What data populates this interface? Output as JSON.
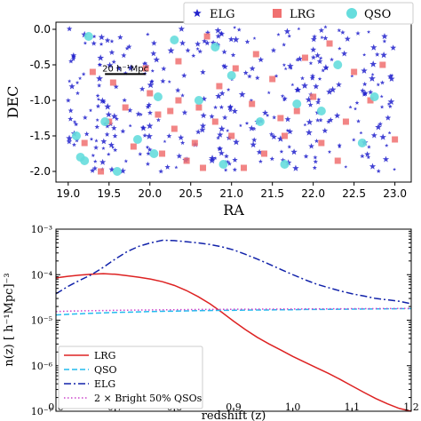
{
  "chart_data": [
    {
      "type": "scatter",
      "title": "",
      "xlabel": "RA",
      "ylabel": "DEC",
      "xlim": [
        18.85,
        23.2
      ],
      "ylim": [
        -2.15,
        0.1
      ],
      "xticks": [
        "19.0",
        "19.5",
        "20.0",
        "20.5",
        "21.0",
        "21.5",
        "22.0",
        "22.5",
        "23.0"
      ],
      "xtick_values": [
        19.0,
        19.5,
        20.0,
        20.5,
        21.0,
        21.5,
        22.0,
        22.5,
        23.0
      ],
      "yticks": [
        "0.0",
        "-0.5",
        "-1.0",
        "-1.5",
        "-2.0"
      ],
      "ytick_values": [
        0.0,
        -0.5,
        -1.0,
        -1.5,
        -2.0
      ],
      "legend_position": "top",
      "scale_bar": {
        "label": "20 h⁻¹Mpc",
        "ra_start": 19.45,
        "ra_end": 19.95,
        "dec": -0.63
      },
      "series": [
        {
          "name": "ELG",
          "marker": "star",
          "color": "#2222cc",
          "points": "sampled-dense"
        },
        {
          "name": "LRG",
          "marker": "square",
          "color": "#f07070",
          "points": [
            [
              19.2,
              -1.6
            ],
            [
              19.3,
              -0.6
            ],
            [
              19.55,
              -0.75
            ],
            [
              19.5,
              -1.3
            ],
            [
              19.4,
              -2.0
            ],
            [
              19.7,
              -1.1
            ],
            [
              19.8,
              -1.65
            ],
            [
              20.0,
              -0.9
            ],
            [
              20.1,
              -1.2
            ],
            [
              20.15,
              -1.75
            ],
            [
              20.3,
              -1.4
            ],
            [
              20.35,
              -0.45
            ],
            [
              20.35,
              -1.0
            ],
            [
              20.45,
              -1.85
            ],
            [
              20.6,
              -1.1
            ],
            [
              20.55,
              -1.6
            ],
            [
              20.7,
              -0.1
            ],
            [
              20.8,
              -1.3
            ],
            [
              20.85,
              -0.8
            ],
            [
              20.65,
              -1.95
            ],
            [
              21.0,
              -1.5
            ],
            [
              21.05,
              -0.55
            ],
            [
              21.15,
              -1.95
            ],
            [
              21.25,
              -1.05
            ],
            [
              21.4,
              -1.75
            ],
            [
              21.5,
              -0.7
            ],
            [
              21.6,
              -1.25
            ],
            [
              21.65,
              -1.5
            ],
            [
              21.8,
              -1.15
            ],
            [
              21.9,
              -0.4
            ],
            [
              22.0,
              -0.95
            ],
            [
              22.1,
              -1.6
            ],
            [
              22.2,
              -0.2
            ],
            [
              22.3,
              -1.85
            ],
            [
              22.4,
              -1.3
            ],
            [
              22.5,
              -0.6
            ],
            [
              22.7,
              -1.0
            ],
            [
              22.85,
              -0.5
            ],
            [
              23.0,
              -1.55
            ],
            [
              20.25,
              -1.15
            ],
            [
              19.95,
              -0.55
            ],
            [
              21.3,
              -0.35
            ]
          ]
        },
        {
          "name": "QSO",
          "marker": "circle",
          "color": "#66dddd",
          "points": [
            [
              19.15,
              -1.8
            ],
            [
              19.2,
              -1.85
            ],
            [
              19.25,
              -0.1
            ],
            [
              19.1,
              -1.5
            ],
            [
              19.45,
              -1.3
            ],
            [
              19.6,
              -2.0
            ],
            [
              19.85,
              -1.55
            ],
            [
              20.05,
              -1.75
            ],
            [
              20.1,
              -0.95
            ],
            [
              20.6,
              -1.0
            ],
            [
              20.8,
              -0.25
            ],
            [
              20.9,
              -1.9
            ],
            [
              21.35,
              -1.3
            ],
            [
              21.0,
              -0.65
            ],
            [
              21.65,
              -1.9
            ],
            [
              22.1,
              -1.15
            ],
            [
              22.3,
              -0.5
            ],
            [
              22.6,
              -1.6
            ],
            [
              22.75,
              -0.95
            ],
            [
              21.8,
              -1.05
            ],
            [
              20.3,
              -0.15
            ]
          ]
        }
      ]
    },
    {
      "type": "line",
      "title": "",
      "xlabel": "redshift (z)",
      "ylabel": "n(z) [ h⁻¹Mpc]⁻³",
      "xlim": [
        0.6,
        1.2
      ],
      "ylim": [
        1e-07,
        0.001
      ],
      "yscale": "log",
      "xticks": [
        "0.6",
        "0.7",
        "0.8",
        "0.9",
        "1.0",
        "1.1",
        "1.2"
      ],
      "xtick_values": [
        0.6,
        0.7,
        0.8,
        0.9,
        1.0,
        1.1,
        1.2
      ],
      "ytick_labels": [
        "10⁻⁷",
        "10⁻⁶",
        "10⁻⁵",
        "10⁻⁴",
        "10⁻³"
      ],
      "ytick_values": [
        1e-07,
        1e-06,
        1e-05,
        0.0001,
        0.001
      ],
      "legend_position": "bottom-left",
      "x": [
        0.6,
        0.62,
        0.64,
        0.66,
        0.68,
        0.7,
        0.72,
        0.74,
        0.76,
        0.78,
        0.8,
        0.82,
        0.84,
        0.86,
        0.88,
        0.9,
        0.92,
        0.94,
        0.96,
        0.98,
        1.0,
        1.02,
        1.04,
        1.06,
        1.08,
        1.1,
        1.12,
        1.14,
        1.16,
        1.18,
        1.2
      ],
      "series": [
        {
          "name": "LRG",
          "color": "#dd2222",
          "style": "solid",
          "values": [
            8.5e-05,
            9.2e-05,
            9.8e-05,
            0.000102,
            0.000105,
            0.000102,
            9.5e-05,
            8.8e-05,
            8e-05,
            7e-05,
            5.8e-05,
            4.5e-05,
            3.3e-05,
            2.3e-05,
            1.5e-05,
            9.5e-06,
            6.2e-06,
            4.2e-06,
            3e-06,
            2.2e-06,
            1.6e-06,
            1.2e-06,
            9e-07,
            6.8e-07,
            5e-07,
            3.6e-07,
            2.6e-07,
            1.9e-07,
            1.45e-07,
            1.15e-07,
            1e-07
          ]
        },
        {
          "name": "QSO",
          "color": "#22bbee",
          "style": "dashed",
          "values": [
            1.3e-05,
            1.35e-05,
            1.38e-05,
            1.42e-05,
            1.45e-05,
            1.48e-05,
            1.5e-05,
            1.52e-05,
            1.55e-05,
            1.57e-05,
            1.58e-05,
            1.6e-05,
            1.62e-05,
            1.63e-05,
            1.65e-05,
            1.65e-05,
            1.67e-05,
            1.68e-05,
            1.68e-05,
            1.7e-05,
            1.7e-05,
            1.72e-05,
            1.72e-05,
            1.73e-05,
            1.74e-05,
            1.75e-05,
            1.76e-05,
            1.77e-05,
            1.78e-05,
            1.79e-05,
            1.8e-05
          ]
        },
        {
          "name": "ELG",
          "color": "#1122aa",
          "style": "dashdot",
          "values": [
            3.8e-05,
            5.5e-05,
            7.5e-05,
            0.0001,
            0.000145,
            0.00022,
            0.00032,
            0.00042,
            0.0005,
            0.00057,
            0.00056,
            0.00053,
            0.0005,
            0.00046,
            0.00041,
            0.00035,
            0.00028,
            0.00022,
            0.00017,
            0.00013,
            0.0001,
            7.8e-05,
            6.2e-05,
            5.2e-05,
            4.4e-05,
            3.8e-05,
            3.4e-05,
            3e-05,
            2.8e-05,
            2.6e-05,
            2.3e-05
          ]
        },
        {
          "name": "2 × Bright 50% QSOs",
          "color": "#cc44cc",
          "style": "dotted",
          "values": [
            1.55e-05,
            1.58e-05,
            1.6e-05,
            1.62e-05,
            1.63e-05,
            1.65e-05,
            1.66e-05,
            1.67e-05,
            1.68e-05,
            1.69e-05,
            1.7e-05,
            1.71e-05,
            1.72e-05,
            1.72e-05,
            1.73e-05,
            1.74e-05,
            1.74e-05,
            1.75e-05,
            1.75e-05,
            1.76e-05,
            1.76e-05,
            1.77e-05,
            1.77e-05,
            1.78e-05,
            1.78e-05,
            1.79e-05,
            1.79e-05,
            1.8e-05,
            1.8e-05,
            1.81e-05,
            1.81e-05
          ]
        }
      ]
    }
  ]
}
